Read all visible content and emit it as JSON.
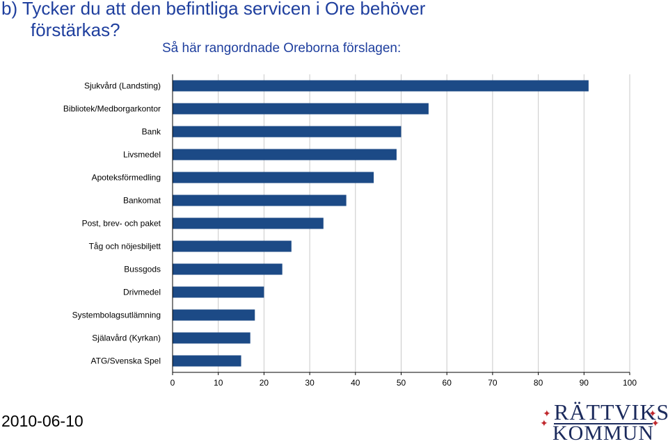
{
  "page": {
    "title_line1": "b) Tycker du att den befintliga servicen i Ore behöver",
    "title_line2": "förstärkas?",
    "subtitle": "Så här rangordnade Oreborna förslagen:",
    "date": "2010-06-10",
    "logo": {
      "line1": "RÄTTVIKS",
      "line2": "KOMMUN",
      "star_color": "#c0282d",
      "text_color": "#1b2a5c"
    }
  },
  "colors": {
    "title": "#1f3f9e",
    "bar": "#1c4a86",
    "grid": "#c8c8c8",
    "axis": "#000000"
  },
  "chart_data": {
    "type": "bar",
    "orientation": "horizontal",
    "categories": [
      "Sjukvård (Landsting)",
      "Bibliotek/Medborgarkontor",
      "Bank",
      "Livsmedel",
      "Apoteksförmedling",
      "Bankomat",
      "Post, brev- och paket",
      "Tåg och nöjesbiljett",
      "Bussgods",
      "Drivmedel",
      "Systembolagsutlämning",
      "Själavård (Kyrkan)",
      "ATG/Svenska Spel"
    ],
    "values": [
      91,
      56,
      50,
      49,
      44,
      38,
      33,
      26,
      24,
      20,
      18,
      17,
      15
    ],
    "xlim": [
      0,
      100
    ],
    "xticks": [
      "0",
      "10",
      "20",
      "30",
      "40",
      "50",
      "60",
      "70",
      "80",
      "90",
      "100"
    ],
    "grid": true,
    "legend": "none"
  }
}
